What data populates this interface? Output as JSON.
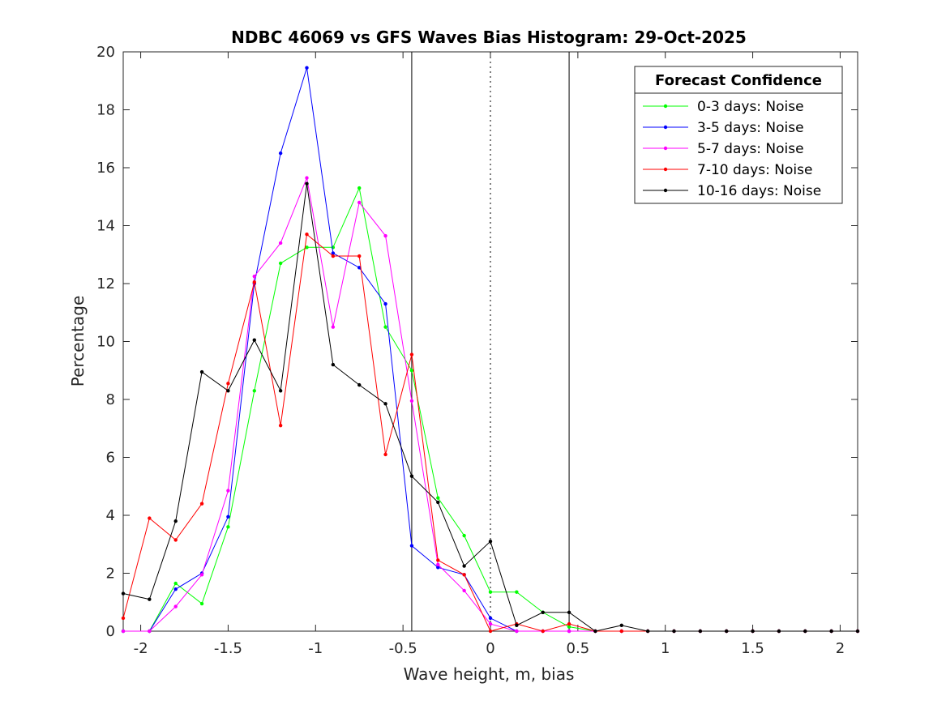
{
  "chart_data": {
    "type": "line",
    "title": "NDBC 46069 vs GFS Waves Bias Histogram: 29-Oct-2025",
    "xlabel": "Wave height, m, bias",
    "ylabel": "Percentage",
    "xlim": [
      -2.1,
      2.1
    ],
    "ylim": [
      0,
      20
    ],
    "xticks": [
      -2,
      -1.5,
      -1,
      -0.5,
      0,
      0.5,
      1,
      1.5,
      2
    ],
    "xtick_labels": [
      "-2",
      "-1.5",
      "-1",
      "-0.5",
      "0",
      "0.5",
      "1",
      "1.5",
      "2"
    ],
    "yticks": [
      0,
      2,
      4,
      6,
      8,
      10,
      12,
      14,
      16,
      18,
      20
    ],
    "ytick_labels": [
      "0",
      "2",
      "4",
      "6",
      "8",
      "10",
      "12",
      "14",
      "16",
      "18",
      "20"
    ],
    "grid": false,
    "legend_title": "Forecast Confidence",
    "legend_position": "top-right",
    "vertical_lines": [
      {
        "x": -0.45,
        "style": "solid",
        "color": "#000000"
      },
      {
        "x": 0,
        "style": "dotted",
        "color": "#000000"
      },
      {
        "x": 0.45,
        "style": "solid",
        "color": "#000000"
      }
    ],
    "x": [
      -2.1,
      -1.95,
      -1.8,
      -1.65,
      -1.5,
      -1.35,
      -1.2,
      -1.05,
      -0.9,
      -0.75,
      -0.6,
      -0.45,
      -0.3,
      -0.15,
      0,
      0.15,
      0.3,
      0.45,
      0.6,
      0.75,
      0.9,
      1.05,
      1.2,
      1.35,
      1.5,
      1.65,
      1.8,
      1.95,
      2.1
    ],
    "series": [
      {
        "name": "0-3 days: Noise",
        "color": "#00ff00",
        "values": [
          0,
          0,
          1.65,
          0.95,
          3.6,
          8.3,
          12.7,
          13.25,
          13.25,
          15.3,
          10.5,
          9.0,
          4.6,
          3.3,
          1.35,
          1.35,
          0.65,
          0.15,
          0,
          0,
          0,
          0,
          0,
          0,
          0,
          0,
          0,
          0,
          0
        ]
      },
      {
        "name": "3-5 days: Noise",
        "color": "#0000ff",
        "values": [
          0,
          0,
          1.45,
          2.0,
          3.95,
          12.0,
          16.5,
          19.45,
          13.05,
          12.55,
          11.3,
          2.95,
          2.2,
          1.95,
          0.45,
          0,
          0,
          0,
          0,
          0,
          0,
          0,
          0,
          0,
          0,
          0,
          0,
          0,
          0
        ]
      },
      {
        "name": "5-7 days: Noise",
        "color": "#ff00ff",
        "values": [
          0,
          0,
          0.85,
          1.95,
          4.85,
          12.25,
          13.4,
          15.65,
          10.5,
          14.8,
          13.65,
          7.95,
          2.3,
          1.4,
          0.25,
          0,
          0,
          0,
          0,
          0,
          0,
          0,
          0,
          0,
          0,
          0,
          0,
          0,
          0
        ]
      },
      {
        "name": "7-10 days: Noise",
        "color": "#ff0000",
        "values": [
          0.45,
          3.9,
          3.15,
          4.4,
          8.55,
          12.05,
          7.1,
          13.7,
          12.95,
          12.95,
          6.1,
          9.55,
          2.45,
          1.95,
          0,
          0.25,
          0,
          0.25,
          0,
          0,
          0,
          0,
          0,
          0,
          0,
          0,
          0,
          0,
          0
        ]
      },
      {
        "name": "10-16 days: Noise",
        "color": "#000000",
        "values": [
          1.3,
          1.1,
          3.8,
          8.95,
          8.3,
          10.05,
          8.3,
          15.45,
          9.2,
          8.5,
          7.85,
          5.35,
          4.45,
          2.25,
          3.1,
          0.2,
          0.65,
          0.65,
          0,
          0.2,
          0,
          0,
          0,
          0,
          0,
          0,
          0,
          0,
          0
        ]
      }
    ]
  }
}
